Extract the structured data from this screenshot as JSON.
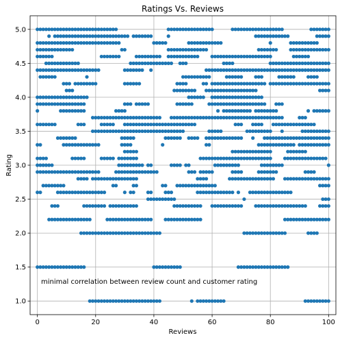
{
  "chart_data": {
    "type": "scatter",
    "title": "Ratings Vs. Reviews",
    "xlabel": "Reviews",
    "ylabel": "Rating",
    "annotation": "minimal correlation between review count and customer rating",
    "xlim": [
      -2.5,
      102.5
    ],
    "ylim": [
      0.8,
      5.2
    ],
    "xticks": [
      0,
      20,
      40,
      60,
      80,
      100
    ],
    "xtick_labels": [
      "0",
      "20",
      "40",
      "60",
      "80",
      "100"
    ],
    "yticks": [
      1.0,
      1.5,
      2.0,
      2.5,
      3.0,
      3.5,
      4.0,
      4.5,
      5.0
    ],
    "ytick_labels": [
      "1.0",
      "1.5",
      "2.0",
      "2.5",
      "3.0",
      "3.5",
      "4.0",
      "4.5",
      "5.0"
    ],
    "grid": true,
    "marker_color": "#1f77b4",
    "x_range": [
      0,
      100
    ],
    "rating_levels": [
      1.0,
      1.5,
      2.0,
      2.2,
      2.4,
      2.5,
      2.6,
      2.7,
      2.8,
      2.9,
      3.0,
      3.1,
      3.2,
      3.3,
      3.4,
      3.5,
      3.6,
      3.7,
      3.8,
      3.9,
      4.0,
      4.1,
      4.2,
      4.3,
      4.4,
      4.5,
      4.6,
      4.7,
      4.8,
      4.9,
      5.0
    ],
    "level_density": [
      0.55,
      0.3,
      0.4,
      0.45,
      0.6,
      0.55,
      0.5,
      0.45,
      0.6,
      0.5,
      0.65,
      0.5,
      0.55,
      0.55,
      0.5,
      0.6,
      0.5,
      0.55,
      0.55,
      0.5,
      0.6,
      0.55,
      0.6,
      0.55,
      0.5,
      0.6,
      0.5,
      0.55,
      0.55,
      0.5,
      0.65
    ]
  }
}
